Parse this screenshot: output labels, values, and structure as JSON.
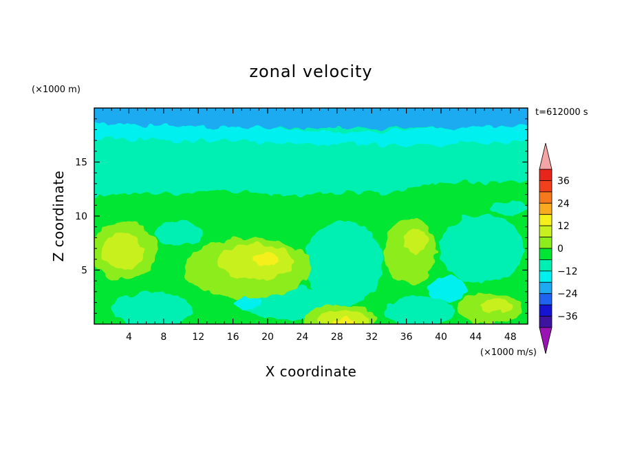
{
  "chart_data": {
    "type": "heatmap",
    "title": "zonal velocity",
    "xlabel": "X coordinate",
    "ylabel": "Z coordinate",
    "x_units": "(×1000 m/s)",
    "y_units": "(×1000 m)",
    "time_label": "t=612000 s",
    "xlim": [
      0,
      50
    ],
    "ylim": [
      0,
      20
    ],
    "x_ticks": [
      4,
      8,
      12,
      16,
      20,
      24,
      28,
      32,
      36,
      40,
      44,
      48
    ],
    "y_ticks": [
      5,
      10,
      15
    ],
    "colorbar": {
      "ticks": [
        36,
        24,
        12,
        0,
        -12,
        -24,
        -36
      ],
      "levels": [
        {
          "from": 36,
          "to": 42,
          "color": "#e8251a"
        },
        {
          "from": 30,
          "to": 36,
          "color": "#f0401c"
        },
        {
          "from": 24,
          "to": 30,
          "color": "#f7791e"
        },
        {
          "from": 18,
          "to": 24,
          "color": "#faaa1e"
        },
        {
          "from": 12,
          "to": 18,
          "color": "#f5f01c"
        },
        {
          "from": 6,
          "to": 12,
          "color": "#c8f01e"
        },
        {
          "from": 0,
          "to": 6,
          "color": "#8cec1c"
        },
        {
          "from": -6,
          "to": 0,
          "color": "#00e632"
        },
        {
          "from": -12,
          "to": -6,
          "color": "#00f0b4"
        },
        {
          "from": -18,
          "to": -12,
          "color": "#00f0f0"
        },
        {
          "from": -24,
          "to": -18,
          "color": "#1eaaf0"
        },
        {
          "from": -30,
          "to": -24,
          "color": "#1e64f0"
        },
        {
          "from": -36,
          "to": -30,
          "color": "#1414d2"
        },
        {
          "from": -42,
          "to": -36,
          "color": "#3c14a0"
        }
      ],
      "over_color": "#f5a5a5",
      "under_color": "#9a14b4"
    },
    "field_samples": [
      {
        "z": 19,
        "band": [
          [
            0,
            50,
            -21
          ]
        ]
      },
      {
        "z": 17.5,
        "band": [
          [
            0,
            50,
            -15
          ]
        ]
      },
      {
        "z": 15,
        "band": [
          [
            0,
            50,
            -9
          ]
        ]
      },
      {
        "z": 12.5,
        "band": [
          [
            0,
            50,
            -7
          ]
        ]
      },
      {
        "z": 11,
        "band": [
          [
            0,
            16,
            -3
          ],
          [
            16,
            36,
            -6
          ],
          [
            36,
            50,
            -3
          ]
        ]
      },
      {
        "z": 7.5,
        "band": [
          [
            0,
            6,
            8
          ],
          [
            6,
            16,
            -2
          ],
          [
            16,
            24,
            5
          ],
          [
            24,
            33,
            -9
          ],
          [
            33,
            40,
            3
          ],
          [
            40,
            50,
            -9
          ]
        ]
      },
      {
        "z": 5.5,
        "band": [
          [
            0,
            6,
            8
          ],
          [
            6,
            14,
            -3
          ],
          [
            14,
            22,
            10
          ],
          [
            22,
            24,
            2
          ],
          [
            24,
            33,
            -9
          ],
          [
            33,
            40,
            3
          ],
          [
            40,
            50,
            -6
          ]
        ]
      },
      {
        "z": 3,
        "band": [
          [
            0,
            10,
            -3
          ],
          [
            10,
            24,
            4
          ],
          [
            24,
            32,
            -9
          ],
          [
            32,
            40,
            -9
          ],
          [
            40,
            50,
            1
          ]
        ]
      },
      {
        "z": 1,
        "band": [
          [
            0,
            20,
            -9
          ],
          [
            20,
            26,
            -9
          ],
          [
            26,
            33,
            10
          ],
          [
            33,
            44,
            -9
          ],
          [
            44,
            50,
            4
          ]
        ]
      }
    ]
  }
}
